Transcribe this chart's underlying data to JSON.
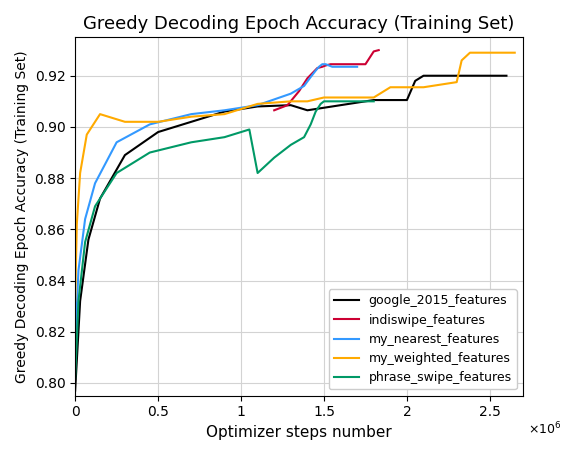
{
  "title": "Greedy Decoding Epoch Accuracy (Training Set)",
  "xlabel": "Optimizer steps number",
  "ylabel": "Greedy Decoding Epoch Accuracy (Training Set)",
  "xlim": [
    0,
    2700000
  ],
  "ylim": [
    0.795,
    0.935
  ],
  "legend_loc": "lower right",
  "figsize": [
    5.76,
    4.55
  ],
  "dpi": 100,
  "series": [
    {
      "label": "google_2015_features",
      "color": "black",
      "segments": [
        {
          "x": [
            0,
            30000,
            80000,
            150000,
            300000,
            500000,
            700000,
            900000,
            1100000,
            1300000,
            1400000,
            1500000,
            1600000,
            1700000,
            1800000,
            1900000,
            2000000,
            2050000,
            2100000,
            2150000,
            2200000,
            2600000
          ],
          "y": [
            0.797,
            0.832,
            0.856,
            0.872,
            0.889,
            0.898,
            0.902,
            0.906,
            0.908,
            0.9085,
            0.9065,
            0.9075,
            0.9085,
            0.9095,
            0.9105,
            0.9105,
            0.9105,
            0.918,
            0.92,
            0.92,
            0.92,
            0.92
          ]
        }
      ]
    },
    {
      "label": "indiswipe_features",
      "color": "#cc0033",
      "segments": [
        {
          "x": [
            1200000,
            1280000,
            1350000,
            1400000,
            1430000,
            1460000,
            1490000,
            1510000,
            1540000,
            1600000,
            1650000,
            1700000,
            1750000,
            1800000,
            1830000
          ],
          "y": [
            0.9065,
            0.9085,
            0.914,
            0.919,
            0.921,
            0.923,
            0.9235,
            0.924,
            0.9245,
            0.9245,
            0.9245,
            0.9245,
            0.9245,
            0.9295,
            0.93
          ]
        }
      ]
    },
    {
      "label": "my_nearest_features",
      "color": "#3399ff",
      "segments": [
        {
          "x": [
            0,
            20000,
            60000,
            120000,
            250000,
            450000,
            700000,
            900000,
            1100000,
            1300000,
            1380000,
            1420000,
            1450000,
            1470000,
            1490000,
            1510000,
            1550000,
            1600000,
            1650000,
            1700000
          ],
          "y": [
            0.815,
            0.844,
            0.864,
            0.878,
            0.894,
            0.901,
            0.905,
            0.9065,
            0.9085,
            0.913,
            0.916,
            0.9195,
            0.922,
            0.9235,
            0.9245,
            0.9245,
            0.9235,
            0.9235,
            0.9235,
            0.9235
          ]
        }
      ]
    },
    {
      "label": "my_weighted_features",
      "color": "#ffaa00",
      "segments": [
        {
          "x": [
            0,
            10000,
            30000,
            70000,
            150000,
            300000,
            500000,
            700000,
            900000,
            1100000,
            1300000,
            1400000,
            1500000,
            1600000,
            1700000,
            1800000,
            1900000,
            2000000,
            2100000,
            2200000,
            2300000,
            2330000,
            2380000,
            2450000,
            2600000,
            2650000
          ],
          "y": [
            0.832,
            0.862,
            0.882,
            0.897,
            0.905,
            0.902,
            0.902,
            0.904,
            0.905,
            0.909,
            0.91,
            0.91,
            0.9115,
            0.9115,
            0.9115,
            0.9115,
            0.9155,
            0.9155,
            0.9155,
            0.9165,
            0.9175,
            0.926,
            0.929,
            0.929,
            0.929,
            0.929
          ]
        }
      ]
    },
    {
      "label": "phrase_swipe_features",
      "color": "#009966",
      "segments": [
        {
          "x": [
            0,
            20000,
            60000,
            120000,
            250000,
            450000,
            700000,
            900000,
            1050000,
            1100000,
            1200000,
            1300000,
            1380000,
            1420000,
            1450000,
            1480000,
            1500000,
            1600000,
            1700000,
            1800000
          ],
          "y": [
            0.802,
            0.832,
            0.855,
            0.869,
            0.882,
            0.89,
            0.894,
            0.896,
            0.899,
            0.882,
            0.888,
            0.893,
            0.896,
            0.901,
            0.906,
            0.909,
            0.91,
            0.91,
            0.91,
            0.91
          ]
        }
      ]
    }
  ]
}
